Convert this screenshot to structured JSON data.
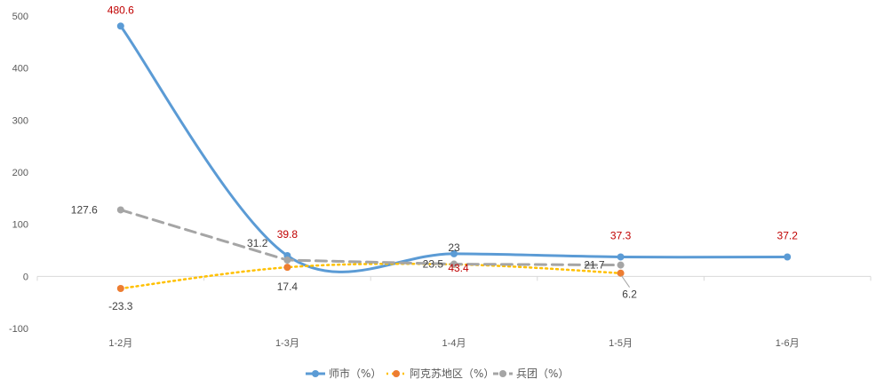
{
  "chart_data": {
    "type": "line",
    "categories": [
      "1-2月",
      "1-3月",
      "1-4月",
      "1-5月",
      "1-6月"
    ],
    "ylim": [
      -100,
      500
    ],
    "yticks": [
      -100,
      0,
      100,
      200,
      300,
      400,
      500
    ],
    "grid": false,
    "legend_position": "bottom",
    "series": [
      {
        "name": "师市（%）",
        "values": [
          480.6,
          39.8,
          43.4,
          37.3,
          37.2
        ],
        "labels": [
          "480.6",
          "39.8",
          "43.4",
          "37.3",
          "37.2"
        ],
        "color": "#5B9BD5",
        "label_color": "#C00000",
        "style": "solid-smooth"
      },
      {
        "name": "阿克苏地区（%）",
        "values": [
          -23.3,
          17.4,
          23.0,
          6.2,
          null
        ],
        "labels": [
          "-23.3",
          "17.4",
          "23",
          "6.2",
          null
        ],
        "color": "#ED7D31",
        "line_color": "#FFC000",
        "label_color": "#404040",
        "style": "dotted-smooth"
      },
      {
        "name": "兵团（%）",
        "values": [
          127.6,
          31.2,
          23.5,
          21.7,
          null
        ],
        "labels": [
          "127.6",
          "31.2",
          "23.5",
          "21.7",
          null
        ],
        "color": "#A5A5A5",
        "label_color": "#404040",
        "style": "dashed"
      }
    ]
  }
}
